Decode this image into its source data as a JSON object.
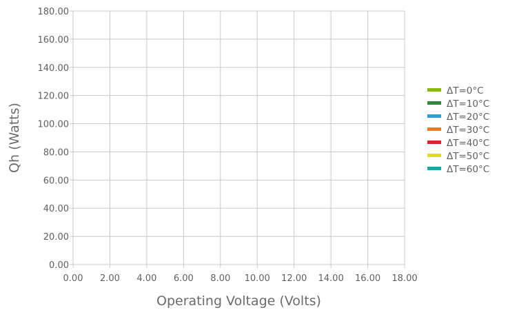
{
  "chart_data": {
    "type": "line",
    "title": "",
    "xlabel": "Operating Voltage (Volts)",
    "ylabel": "Qh (Watts)",
    "xlim": [
      0,
      18
    ],
    "ylim": [
      0,
      180
    ],
    "x_ticks": [
      "0.00",
      "2.00",
      "4.00",
      "6.00",
      "8.00",
      "10.00",
      "12.00",
      "14.00",
      "16.00",
      "18.00"
    ],
    "y_ticks": [
      "0.00",
      "20.00",
      "40.00",
      "60.00",
      "80.00",
      "100.00",
      "120.00",
      "140.00",
      "160.00",
      "180.00"
    ],
    "grid": true,
    "legend_position": "right",
    "series": [
      {
        "name": "ΔT=0°C",
        "color": "#8db51c",
        "x": [],
        "y": []
      },
      {
        "name": "ΔT=10°C",
        "color": "#2e8b3d",
        "x": [],
        "y": []
      },
      {
        "name": "ΔT=20°C",
        "color": "#2e9bd6",
        "x": [],
        "y": []
      },
      {
        "name": "ΔT=30°C",
        "color": "#f07a1a",
        "x": [],
        "y": []
      },
      {
        "name": "ΔT=40°C",
        "color": "#d6262b",
        "x": [],
        "y": []
      },
      {
        "name": "ΔT=50°C",
        "color": "#dede1a",
        "x": [],
        "y": []
      },
      {
        "name": "ΔT=60°C",
        "color": "#1fa6a0",
        "x": [],
        "y": []
      }
    ]
  }
}
